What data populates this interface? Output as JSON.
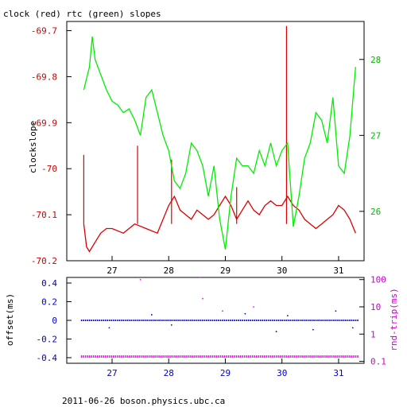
{
  "title": "clock (red) rtc (green) slopes",
  "footer": "2011-06-26 boson.physics.ubc.ca",
  "colors": {
    "red": "#dd0000",
    "green": "#00ee00",
    "blue": "#0000cc",
    "magenta": "#ff00ff",
    "axis_red": "#cc0000",
    "axis_green": "#00bb00",
    "axis_blue": "#0000cc",
    "axis_magenta": "#cc00cc"
  },
  "chart_data": [
    {
      "type": "line",
      "title": "clock (red) rtc (green) slopes",
      "ylabel": "clockslope",
      "xlim": [
        26.2,
        31.45
      ],
      "x_ticks": [
        "27",
        "28",
        "29",
        "30",
        "31"
      ],
      "ylim_left": [
        -70.2,
        -69.68
      ],
      "y_ticks_left": [
        "-69.7",
        "-69.8",
        "-69.9",
        "-70",
        "-70.1",
        "-70.2"
      ],
      "ylim_right": [
        25.35,
        28.5
      ],
      "y_ticks_right": [
        "28",
        "27",
        "26"
      ],
      "series": [
        {
          "axis": "left",
          "color": "red",
          "x": [
            26.5,
            26.55,
            26.6,
            26.7,
            26.8,
            26.9,
            27.0,
            27.2,
            27.4,
            27.6,
            27.8,
            27.9,
            28.0,
            28.1,
            28.2,
            28.3,
            28.4,
            28.5,
            28.6,
            28.7,
            28.8,
            28.9,
            29.0,
            29.1,
            29.2,
            29.3,
            29.4,
            29.5,
            29.6,
            29.7,
            29.8,
            29.9,
            30.0,
            30.1,
            30.2,
            30.3,
            30.4,
            30.5,
            30.6,
            30.7,
            30.8,
            30.9,
            31.0,
            31.1,
            31.2,
            31.3
          ],
          "y": [
            -70.12,
            -70.17,
            -70.18,
            -70.16,
            -70.14,
            -70.13,
            -70.13,
            -70.14,
            -70.12,
            -70.13,
            -70.14,
            -70.11,
            -70.08,
            -70.06,
            -70.09,
            -70.1,
            -70.11,
            -70.09,
            -70.1,
            -70.11,
            -70.1,
            -70.08,
            -70.06,
            -70.08,
            -70.11,
            -70.09,
            -70.07,
            -70.09,
            -70.1,
            -70.08,
            -70.07,
            -70.08,
            -70.08,
            -70.06,
            -70.08,
            -70.09,
            -70.11,
            -70.12,
            -70.13,
            -70.12,
            -70.11,
            -70.1,
            -70.08,
            -70.09,
            -70.11,
            -70.14
          ]
        },
        {
          "axis": "left",
          "color": "red",
          "note_spikes": "isolated spikes",
          "x": [
            26.5,
            27.45,
            28.05,
            29.2,
            30.08
          ],
          "y": [
            -69.97,
            -69.95,
            -69.98,
            -70.04,
            -69.69
          ]
        },
        {
          "axis": "right",
          "color": "green",
          "x": [
            26.5,
            26.6,
            26.65,
            26.7,
            26.8,
            26.9,
            27.0,
            27.1,
            27.2,
            27.3,
            27.4,
            27.5,
            27.6,
            27.7,
            27.8,
            27.9,
            28.0,
            28.1,
            28.2,
            28.3,
            28.4,
            28.5,
            28.6,
            28.7,
            28.8,
            28.9,
            29.0,
            29.1,
            29.2,
            29.3,
            29.4,
            29.5,
            29.6,
            29.7,
            29.8,
            29.9,
            30.0,
            30.1,
            30.2,
            30.3,
            30.4,
            30.5,
            30.6,
            30.7,
            30.8,
            30.9,
            31.0,
            31.1,
            31.2,
            31.3
          ],
          "y": [
            27.6,
            27.9,
            28.3,
            28.0,
            27.8,
            27.6,
            27.45,
            27.4,
            27.3,
            27.35,
            27.2,
            27.0,
            27.5,
            27.6,
            27.3,
            27.0,
            26.8,
            26.4,
            26.3,
            26.5,
            26.9,
            26.8,
            26.6,
            26.2,
            26.6,
            25.9,
            25.5,
            26.2,
            26.7,
            26.6,
            26.6,
            26.5,
            26.8,
            26.6,
            26.9,
            26.6,
            26.8,
            26.9,
            25.8,
            26.2,
            26.7,
            26.9,
            27.3,
            27.2,
            26.9,
            27.5,
            26.6,
            26.5,
            27.0,
            27.9
          ]
        }
      ]
    },
    {
      "type": "scatter",
      "ylabel_left": "offset(ms)",
      "ylabel_right": "rnd-trip(ms)",
      "xlim": [
        26.2,
        31.45
      ],
      "x_ticks": [
        "27",
        "28",
        "29",
        "30",
        "31"
      ],
      "ylim_left": [
        -0.46,
        0.46
      ],
      "y_ticks_left": [
        "0.4",
        "0.2",
        "0",
        "-0.2",
        "-0.4"
      ],
      "y_log_right": true,
      "ylim_right": [
        0.085,
        120
      ],
      "y_ticks_right": [
        "100",
        "10",
        "1",
        "0.1"
      ],
      "series": [
        {
          "name": "offset",
          "axis": "left",
          "color": "blue",
          "typical_value": 0.0
        },
        {
          "name": "rnd-trip",
          "axis": "right",
          "color": "magenta",
          "typical_value": 0.15
        }
      ],
      "outliers": [
        {
          "axis": "right",
          "x": 27.5,
          "y": 100
        },
        {
          "axis": "right",
          "x": 28.55,
          "y": 120
        },
        {
          "axis": "right",
          "x": 28.6,
          "y": 20
        },
        {
          "axis": "right",
          "x": 28.95,
          "y": 7
        },
        {
          "axis": "right",
          "x": 29.5,
          "y": 10
        },
        {
          "axis": "left",
          "x": 26.95,
          "y": -0.08
        },
        {
          "axis": "left",
          "x": 27.7,
          "y": 0.06
        },
        {
          "axis": "left",
          "x": 28.05,
          "y": -0.05
        },
        {
          "axis": "left",
          "x": 29.35,
          "y": 0.07
        },
        {
          "axis": "left",
          "x": 29.9,
          "y": -0.12
        },
        {
          "axis": "left",
          "x": 30.1,
          "y": 0.05
        },
        {
          "axis": "left",
          "x": 30.55,
          "y": -0.1
        },
        {
          "axis": "left",
          "x": 30.95,
          "y": 0.1
        },
        {
          "axis": "left",
          "x": 31.25,
          "y": -0.08
        }
      ]
    }
  ]
}
